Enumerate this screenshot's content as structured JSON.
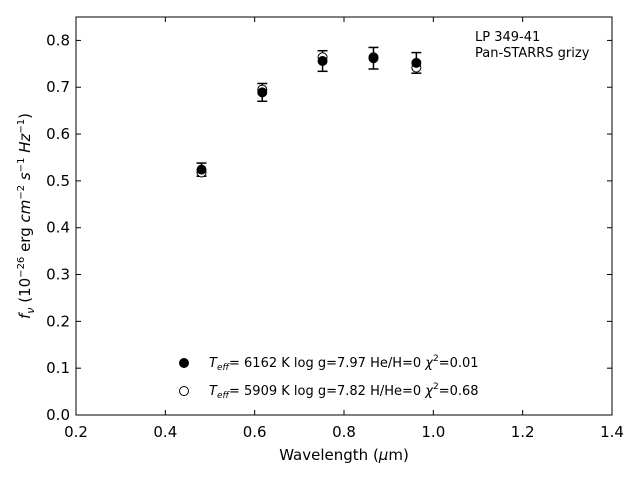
{
  "chart_data": {
    "type": "scatter",
    "xlabel_pre": "Wavelength (",
    "xlabel_mu": "μ",
    "xlabel_post": "m)",
    "ylabel_parts": {
      "f": "f",
      "nu": "ν",
      "open": " (10",
      "e1": "−26",
      "erg": " erg ",
      "cm": "cm",
      "e2": "−2",
      "s": " s",
      "e3": "−1",
      "hz": " Hz",
      "e4": "−1",
      "close": ")"
    },
    "xlim": [
      0.2,
      1.4
    ],
    "ylim": [
      0.0,
      0.85
    ],
    "x_ticks": [
      "0.2",
      "0.4",
      "0.6",
      "0.8",
      "1.0",
      "1.2",
      "1.4"
    ],
    "y_ticks": [
      "0.0",
      "0.1",
      "0.2",
      "0.3",
      "0.4",
      "0.5",
      "0.6",
      "0.7",
      "0.8"
    ],
    "grid": false,
    "legend_position": "bottom-center",
    "annotation": [
      "LP 349-41",
      "Pan-STARRS grizy"
    ],
    "observed": {
      "x": [
        0.481,
        0.617,
        0.752,
        0.866,
        0.962
      ],
      "y": [
        0.524,
        0.689,
        0.756,
        0.762,
        0.752
      ],
      "err": [
        0.014,
        0.019,
        0.022,
        0.023,
        0.022
      ]
    },
    "series": [
      {
        "marker": "filled-circle",
        "name_parts": {
          "T": "T",
          "eff": "eff",
          "rest": "=  6162 K  log g=7.97  He/H=0  ",
          "chi": "χ",
          "two": "2",
          "val": "=0.01"
        },
        "x": [
          0.481,
          0.617,
          0.752,
          0.866,
          0.962
        ],
        "y": [
          0.524,
          0.689,
          0.756,
          0.762,
          0.752
        ]
      },
      {
        "marker": "open-circle",
        "name_parts": {
          "T": "T",
          "eff": "eff",
          "rest": "=  5909 K  log g=7.82  H/He=0  ",
          "chi": "χ",
          "two": "2",
          "val": "=0.68"
        },
        "x": [
          0.481,
          0.617,
          0.752,
          0.866,
          0.962
        ],
        "y": [
          0.518,
          0.695,
          0.764,
          0.764,
          0.742
        ]
      }
    ]
  }
}
